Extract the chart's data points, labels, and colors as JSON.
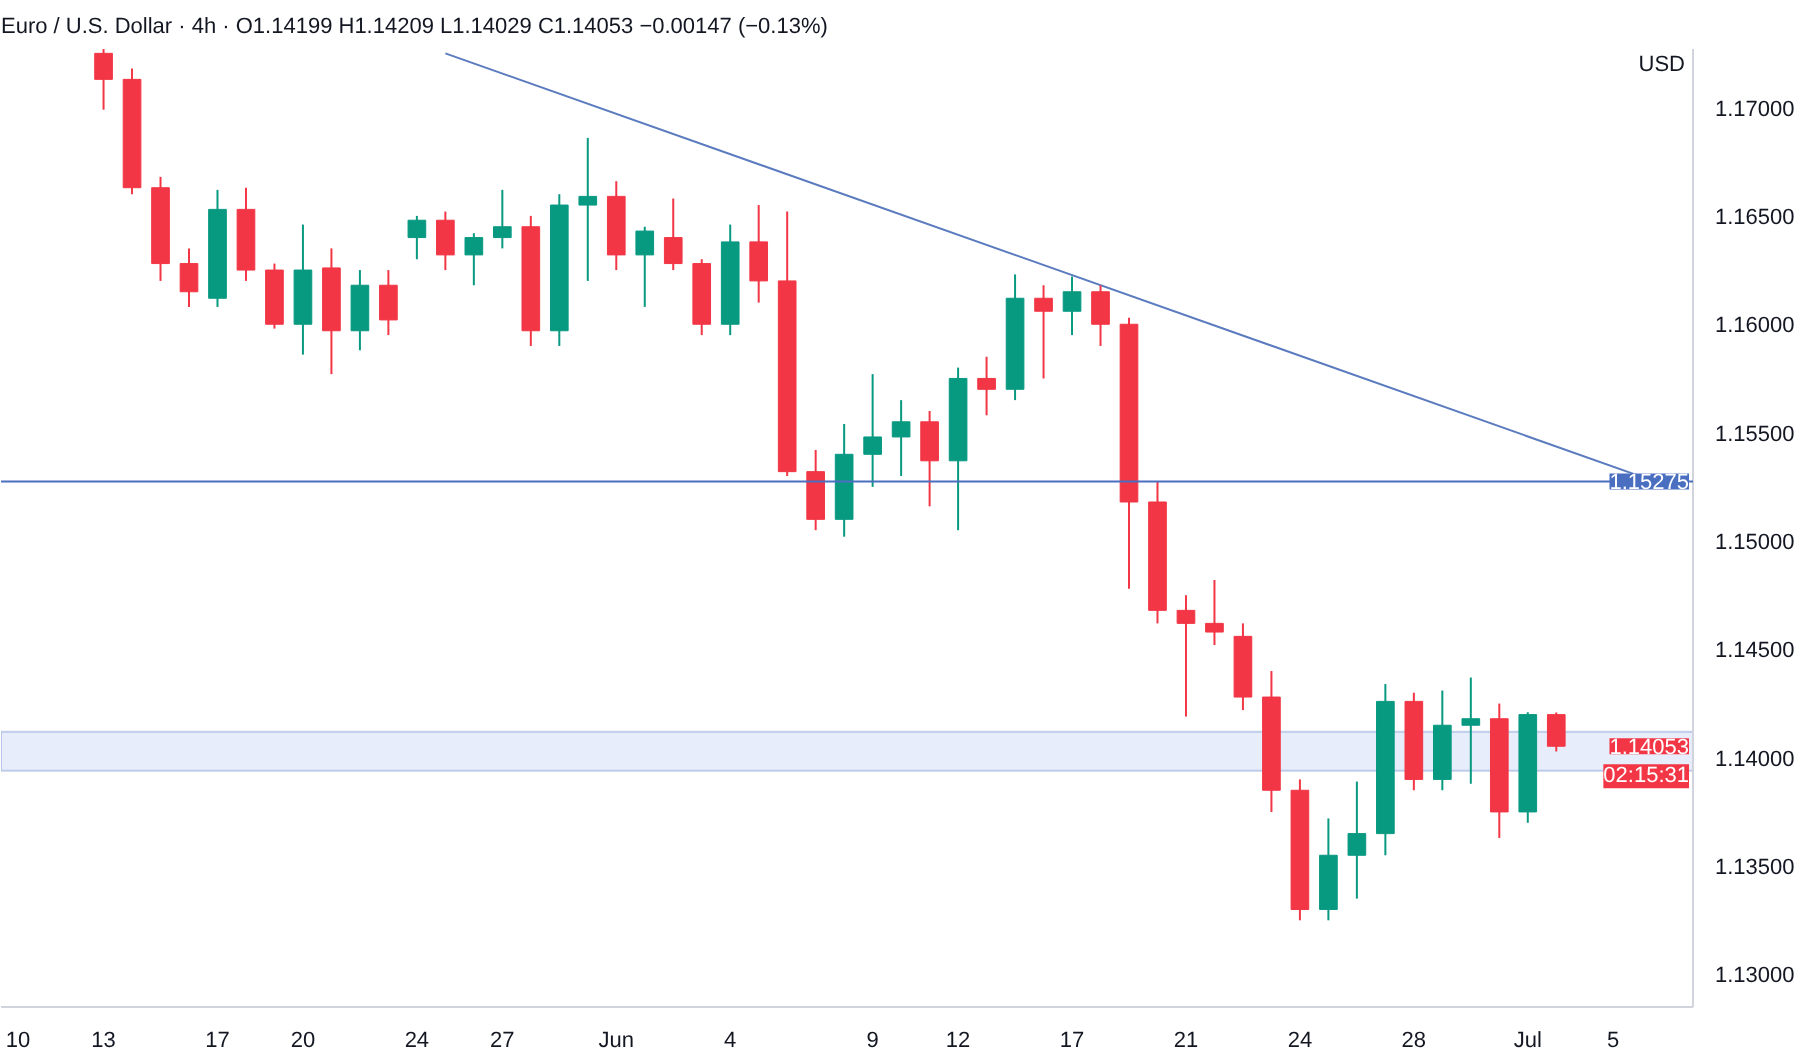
{
  "chart_data": {
    "type": "candlestick",
    "title": "Euro / U.S. Dollar · 4h · O1.14199 H1.14209 L1.14029 C1.14053 −0.00147 (−0.13%)",
    "ylabel": "USD",
    "categories": [
      "10",
      null,
      null,
      "13",
      null,
      null,
      null,
      "17",
      null,
      null,
      "20",
      null,
      null,
      null,
      "24",
      null,
      null,
      "27",
      null,
      null,
      null,
      "Jun",
      null,
      null,
      null,
      "4",
      null,
      null,
      null,
      null,
      "9",
      null,
      null,
      "12",
      null,
      null,
      null,
      "17",
      null,
      null,
      null,
      "21",
      null,
      null,
      null,
      "24",
      null,
      null,
      null,
      "28",
      null,
      null,
      null,
      "Jul",
      null,
      null,
      "5",
      null,
      null
    ],
    "ohlc": [
      null,
      null,
      null,
      [
        1.1725,
        1.1727,
        1.1699,
        1.1713
      ],
      [
        1.1713,
        1.1718,
        1.166,
        1.1663
      ],
      [
        1.1663,
        1.1668,
        1.162,
        1.1628
      ],
      [
        1.1628,
        1.1635,
        1.1608,
        1.1615
      ],
      [
        1.1612,
        1.1662,
        1.1608,
        1.1653
      ],
      [
        1.1653,
        1.1663,
        1.162,
        1.1625
      ],
      [
        1.1625,
        1.1628,
        1.1598,
        1.16
      ],
      [
        1.16,
        1.1646,
        1.1586,
        1.1625
      ],
      [
        1.1626,
        1.1635,
        1.1577,
        1.1597
      ],
      [
        1.1597,
        1.1625,
        1.1588,
        1.1618
      ],
      [
        1.1618,
        1.1625,
        1.1595,
        1.1602
      ],
      [
        1.164,
        1.165,
        1.163,
        1.1648
      ],
      [
        1.1648,
        1.1652,
        1.1625,
        1.1632
      ],
      [
        1.1632,
        1.1642,
        1.1618,
        1.164
      ],
      [
        1.164,
        1.1662,
        1.1635,
        1.1645
      ],
      [
        1.1645,
        1.165,
        1.159,
        1.1597
      ],
      [
        1.1597,
        1.166,
        1.159,
        1.1655
      ],
      [
        1.1655,
        1.1686,
        1.162,
        1.1659
      ],
      [
        1.1659,
        1.1666,
        1.1625,
        1.1632
      ],
      [
        1.1632,
        1.1645,
        1.1608,
        1.1643
      ],
      [
        1.164,
        1.1658,
        1.1625,
        1.1628
      ],
      [
        1.1628,
        1.163,
        1.1595,
        1.16
      ],
      [
        1.16,
        1.1646,
        1.1595,
        1.1638
      ],
      [
        1.1638,
        1.1655,
        1.161,
        1.162
      ],
      [
        1.162,
        1.1652,
        1.153,
        1.1532
      ],
      [
        1.1532,
        1.1542,
        1.1505,
        1.151
      ],
      [
        1.151,
        1.1554,
        1.1502,
        1.154
      ],
      [
        1.154,
        1.1577,
        1.1525,
        1.1548
      ],
      [
        1.1548,
        1.1565,
        1.153,
        1.1555
      ],
      [
        1.1555,
        1.156,
        1.1516,
        1.1537
      ],
      [
        1.1537,
        1.158,
        1.1505,
        1.1575
      ],
      [
        1.1575,
        1.1585,
        1.1558,
        1.157
      ],
      [
        1.157,
        1.1623,
        1.1565,
        1.1612
      ],
      [
        1.1612,
        1.1618,
        1.1575,
        1.1606
      ],
      [
        1.1606,
        1.1622,
        1.1595,
        1.1615
      ],
      [
        1.1615,
        1.1618,
        1.159,
        1.16
      ],
      [
        1.16,
        1.1603,
        1.1478,
        1.1518
      ],
      [
        1.1518,
        1.15275,
        1.1462,
        1.1468
      ],
      [
        1.1468,
        1.1475,
        1.1419,
        1.1462
      ],
      [
        1.1462,
        1.1482,
        1.1452,
        1.1458
      ],
      [
        1.1456,
        1.1462,
        1.1422,
        1.1428
      ],
      [
        1.1428,
        1.144,
        1.1375,
        1.1385
      ],
      [
        1.1385,
        1.139,
        1.1325,
        1.133
      ],
      [
        1.133,
        1.1372,
        1.1325,
        1.1355
      ],
      [
        1.1355,
        1.1389,
        1.1335,
        1.1365
      ],
      [
        1.1365,
        1.1434,
        1.1355,
        1.1426
      ],
      [
        1.1426,
        1.143,
        1.1385,
        1.139
      ],
      [
        1.139,
        1.1431,
        1.1385,
        1.1415
      ],
      [
        1.1415,
        1.1437,
        1.1388,
        1.1418
      ],
      [
        1.1418,
        1.1425,
        1.1363,
        1.1375
      ],
      [
        1.1375,
        1.1421,
        1.137,
        1.14199
      ],
      [
        1.14199,
        1.14209,
        1.14029,
        1.14053
      ],
      null,
      null,
      null,
      null
    ],
    "colors": [
      null,
      null,
      null,
      "#f23645",
      "#f23645",
      "#f23645",
      "#f23645",
      "#089981",
      "#f23645",
      "#f23645",
      "#089981",
      "#f23645",
      "#089981",
      "#f23645",
      "#089981",
      "#f23645",
      "#089981",
      "#089981",
      "#f23645",
      "#089981",
      "#089981",
      "#f23645",
      "#089981",
      "#f23645",
      "#f23645",
      "#089981",
      "#f23645",
      "#f23645",
      "#f23645",
      "#089981",
      "#089981",
      "#089981",
      "#f23645",
      "#089981",
      "#f23645",
      "#089981",
      "#f23645",
      "#089981",
      "#f23645",
      "#f23645",
      "#f23645",
      "#f23645",
      "#f23645",
      "#f23645",
      "#f23645",
      "#f23645",
      "#089981",
      "#089981",
      "#089981",
      "#f23645",
      "#089981",
      "#089981",
      "#f23645",
      "#089981",
      "#f23645",
      null,
      null,
      null,
      null
    ],
    "series": [
      {
        "type": "line",
        "values": [
          null,
          null,
          null,
          null,
          null,
          null,
          null,
          null,
          null,
          null,
          null,
          null,
          null,
          null,
          null,
          1.1725,
          null,
          null,
          null,
          null,
          null,
          null,
          null,
          null,
          null,
          null,
          null,
          null,
          null,
          null,
          null,
          null,
          null,
          null,
          null,
          null,
          null,
          null,
          null,
          null,
          null,
          null,
          null,
          null,
          null,
          null,
          null,
          null,
          null,
          null,
          null,
          null,
          null,
          null,
          null,
          null,
          null,
          null,
          1.1525
        ],
        "color": "#5b7bbf"
      }
    ],
    "ylim": [
      1.1285,
      1.1727
    ],
    "yticks": [
      {
        "value": 1.13,
        "label": "1.13000"
      },
      {
        "value": 1.135,
        "label": "1.13500"
      },
      {
        "value": 1.14,
        "label": "1.14000"
      },
      {
        "value": 1.145,
        "label": "1.14500"
      },
      {
        "value": 1.15,
        "label": "1.15000"
      },
      {
        "value": 1.155,
        "label": "1.15500"
      },
      {
        "value": 1.16,
        "label": "1.16000"
      },
      {
        "value": 1.165,
        "label": "1.16500"
      },
      {
        "value": 1.17,
        "label": "1.17000"
      }
    ],
    "ref_lines": [
      {
        "axis": "y",
        "value": 1.15275,
        "label": "1.15275",
        "color": "#4a6fc1"
      }
    ],
    "bands": [
      {
        "axis": "y",
        "from": 1.1394,
        "to": 1.1412,
        "color": "#e8edfb"
      }
    ],
    "annotations": [
      "1.14053",
      "02:15:31"
    ],
    "grid": false
  }
}
